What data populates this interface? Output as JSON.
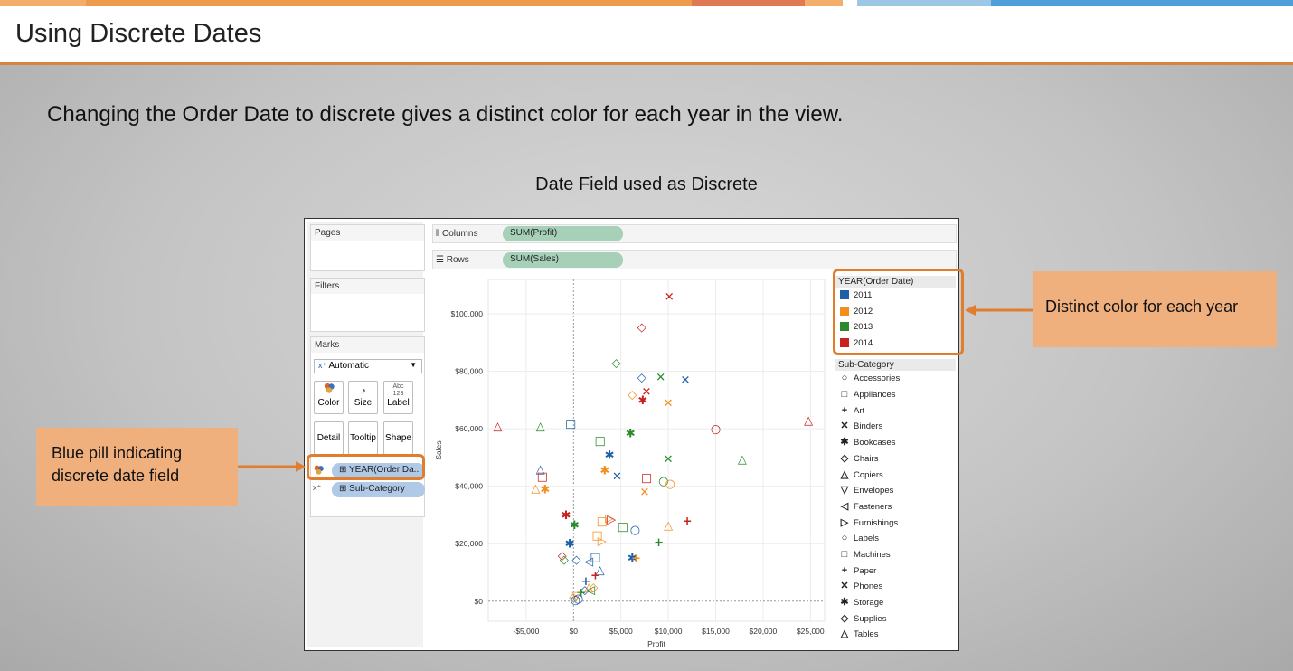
{
  "header": {
    "title": "Using Discrete Dates"
  },
  "subtitle": "Changing the Order Date to discrete gives a distinct color for each year in the view.",
  "chart_title": "Date Field used as Discrete",
  "callouts": {
    "left": "Blue pill indicating discrete date field",
    "right": "Distinct color for each year"
  },
  "tableau": {
    "cards": {
      "pages": "Pages",
      "filters": "Filters",
      "marks": "Marks"
    },
    "marks_type": "Automatic",
    "mark_buttons": {
      "color": "Color",
      "size": "Size",
      "label": "Label",
      "detail": "Detail",
      "tooltip": "Tooltip",
      "shape": "Shape"
    },
    "label_glyph": "Abc\n123",
    "pills": {
      "year": "YEAR(Order Da..",
      "subcategory": "Sub-Category"
    },
    "shelves": {
      "columns_label": "Columns",
      "columns_pill": "SUM(Profit)",
      "rows_label": "Rows",
      "rows_pill": "SUM(Sales)"
    },
    "legend_year": {
      "title": "YEAR(Order Date)",
      "items": [
        {
          "label": "2011",
          "color": "#1f5fa6"
        },
        {
          "label": "2012",
          "color": "#f28e1c"
        },
        {
          "label": "2013",
          "color": "#2b8a2e"
        },
        {
          "label": "2014",
          "color": "#c9211e"
        }
      ]
    },
    "legend_shape": {
      "title": "Sub-Category",
      "items": [
        {
          "label": "Accessories",
          "shape": "○"
        },
        {
          "label": "Appliances",
          "shape": "□"
        },
        {
          "label": "Art",
          "shape": "+"
        },
        {
          "label": "Binders",
          "shape": "✕"
        },
        {
          "label": "Bookcases",
          "shape": "✱"
        },
        {
          "label": "Chairs",
          "shape": "◇"
        },
        {
          "label": "Copiers",
          "shape": "△"
        },
        {
          "label": "Envelopes",
          "shape": "▽"
        },
        {
          "label": "Fasteners",
          "shape": "◁"
        },
        {
          "label": "Furnishings",
          "shape": "▷"
        },
        {
          "label": "Labels",
          "shape": "○"
        },
        {
          "label": "Machines",
          "shape": "□"
        },
        {
          "label": "Paper",
          "shape": "+"
        },
        {
          "label": "Phones",
          "shape": "✕"
        },
        {
          "label": "Storage",
          "shape": "✱"
        },
        {
          "label": "Supplies",
          "shape": "◇"
        },
        {
          "label": "Tables",
          "shape": "△"
        }
      ]
    }
  },
  "chart_data": {
    "type": "scatter",
    "xlabel": "Profit",
    "ylabel": "Sales",
    "xlim": [
      -9000,
      26500
    ],
    "ylim": [
      -7000,
      112000
    ],
    "x_ticks": [
      -5000,
      0,
      5000,
      10000,
      15000,
      20000,
      25000
    ],
    "x_tick_labels": [
      "-$5,000",
      "$0",
      "$5,000",
      "$10,000",
      "$15,000",
      "$20,000",
      "$25,000"
    ],
    "y_ticks": [
      0,
      20000,
      40000,
      60000,
      80000,
      100000
    ],
    "y_tick_labels": [
      "$0",
      "$20,000",
      "$40,000",
      "$60,000",
      "$80,000",
      "$100,000"
    ],
    "grid": true,
    "points": [
      {
        "x": 10100,
        "y": 106000,
        "year": "2014",
        "sub": "Phones"
      },
      {
        "x": 7200,
        "y": 95500,
        "year": "2014",
        "sub": "Chairs"
      },
      {
        "x": 4500,
        "y": 83000,
        "year": "2013",
        "sub": "Chairs"
      },
      {
        "x": 7200,
        "y": 78000,
        "year": "2011",
        "sub": "Chairs"
      },
      {
        "x": 9200,
        "y": 78000,
        "year": "2013",
        "sub": "Phones"
      },
      {
        "x": 11800,
        "y": 77000,
        "year": "2011",
        "sub": "Phones"
      },
      {
        "x": 7700,
        "y": 73000,
        "year": "2014",
        "sub": "Binders"
      },
      {
        "x": 6200,
        "y": 72000,
        "year": "2012",
        "sub": "Chairs"
      },
      {
        "x": 7300,
        "y": 70000,
        "year": "2014",
        "sub": "Storage"
      },
      {
        "x": 10000,
        "y": 69000,
        "year": "2012",
        "sub": "Binders"
      },
      {
        "x": -300,
        "y": 62000,
        "year": "2011",
        "sub": "Appliances"
      },
      {
        "x": -8000,
        "y": 61000,
        "year": "2014",
        "sub": "Copiers"
      },
      {
        "x": -3500,
        "y": 61000,
        "year": "2013",
        "sub": "Copiers"
      },
      {
        "x": 24800,
        "y": 63000,
        "year": "2014",
        "sub": "Tables"
      },
      {
        "x": 15000,
        "y": 60000,
        "year": "2014",
        "sub": "Labels"
      },
      {
        "x": 6000,
        "y": 58500,
        "year": "2013",
        "sub": "Storage"
      },
      {
        "x": 2800,
        "y": 56000,
        "year": "2013",
        "sub": "Machines"
      },
      {
        "x": 3800,
        "y": 51000,
        "year": "2011",
        "sub": "Storage"
      },
      {
        "x": 10000,
        "y": 49500,
        "year": "2013",
        "sub": "Phones"
      },
      {
        "x": 17800,
        "y": 49500,
        "year": "2013",
        "sub": "Tables"
      },
      {
        "x": -3500,
        "y": 46000,
        "year": "2011",
        "sub": "Tables"
      },
      {
        "x": 3300,
        "y": 45500,
        "year": "2012",
        "sub": "Storage"
      },
      {
        "x": -3300,
        "y": 43500,
        "year": "2014",
        "sub": "Appliances"
      },
      {
        "x": 4600,
        "y": 43500,
        "year": "2011",
        "sub": "Binders"
      },
      {
        "x": 7700,
        "y": 43000,
        "year": "2014",
        "sub": "Machines"
      },
      {
        "x": 9500,
        "y": 42000,
        "year": "2013",
        "sub": "Labels"
      },
      {
        "x": 10200,
        "y": 41000,
        "year": "2012",
        "sub": "Labels"
      },
      {
        "x": -4000,
        "y": 39500,
        "year": "2012",
        "sub": "Tables"
      },
      {
        "x": -3000,
        "y": 39000,
        "year": "2012",
        "sub": "Storage"
      },
      {
        "x": 7500,
        "y": 38000,
        "year": "2012",
        "sub": "Binders"
      },
      {
        "x": -800,
        "y": 30000,
        "year": "2014",
        "sub": "Storage"
      },
      {
        "x": 3800,
        "y": 29000,
        "year": "2012",
        "sub": "Furnishings"
      },
      {
        "x": 4000,
        "y": 28500,
        "year": "2014",
        "sub": "Furnishings"
      },
      {
        "x": 3000,
        "y": 28000,
        "year": "2012",
        "sub": "Machines"
      },
      {
        "x": 12000,
        "y": 28000,
        "year": "2014",
        "sub": "Paper"
      },
      {
        "x": 100,
        "y": 26500,
        "year": "2013",
        "sub": "Storage"
      },
      {
        "x": 10000,
        "y": 26500,
        "year": "2012",
        "sub": "Tables"
      },
      {
        "x": 5200,
        "y": 26000,
        "year": "2013",
        "sub": "Machines"
      },
      {
        "x": 6500,
        "y": 25000,
        "year": "2011",
        "sub": "Labels"
      },
      {
        "x": 2500,
        "y": 23000,
        "year": "2012",
        "sub": "Machines"
      },
      {
        "x": 3000,
        "y": 21000,
        "year": "2012",
        "sub": "Furnishings"
      },
      {
        "x": 9000,
        "y": 20500,
        "year": "2013",
        "sub": "Paper"
      },
      {
        "x": -400,
        "y": 20000,
        "year": "2011",
        "sub": "Storage"
      },
      {
        "x": -1200,
        "y": 16000,
        "year": "2014",
        "sub": "Chairs"
      },
      {
        "x": -1000,
        "y": 14500,
        "year": "2013",
        "sub": "Chairs"
      },
      {
        "x": 2300,
        "y": 15500,
        "year": "2011",
        "sub": "Machines"
      },
      {
        "x": 300,
        "y": 14500,
        "year": "2011",
        "sub": "Chairs"
      },
      {
        "x": 1600,
        "y": 14000,
        "year": "2011",
        "sub": "Fasteners"
      },
      {
        "x": 6200,
        "y": 15000,
        "year": "2011",
        "sub": "Storage"
      },
      {
        "x": 6600,
        "y": 15000,
        "year": "2012",
        "sub": "Paper"
      },
      {
        "x": 2800,
        "y": 11000,
        "year": "2011",
        "sub": "Tables"
      },
      {
        "x": 2300,
        "y": 9000,
        "year": "2014",
        "sub": "Paper"
      },
      {
        "x": 1300,
        "y": 7000,
        "year": "2011",
        "sub": "Paper"
      },
      {
        "x": 1600,
        "y": 5000,
        "year": "2012",
        "sub": "Tables"
      },
      {
        "x": 2100,
        "y": 5000,
        "year": "2012",
        "sub": "Chairs"
      },
      {
        "x": 1200,
        "y": 4000,
        "year": "2011",
        "sub": "Supplies"
      },
      {
        "x": 1800,
        "y": 4000,
        "year": "2013",
        "sub": "Fasteners"
      },
      {
        "x": 800,
        "y": 3000,
        "year": "2013",
        "sub": "Art"
      },
      {
        "x": 300,
        "y": 2000,
        "year": "2012",
        "sub": "Envelopes"
      },
      {
        "x": 0,
        "y": 1500,
        "year": "2012",
        "sub": "Supplies"
      },
      {
        "x": 500,
        "y": 1000,
        "year": "2011",
        "sub": "Labels"
      },
      {
        "x": 200,
        "y": 500,
        "year": "2011",
        "sub": "Accessories"
      }
    ]
  }
}
